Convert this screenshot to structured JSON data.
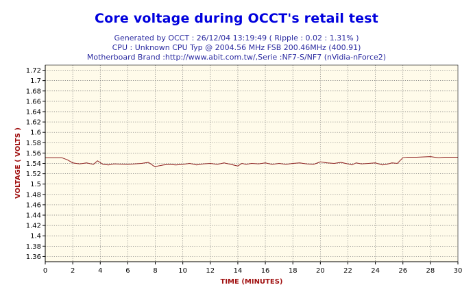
{
  "chart_data": {
    "type": "line",
    "title": "Core voltage during OCCT's retail test",
    "subtitle_lines": [
      "Generated by OCCT : 26/12/04 13:19:49 ( Ripple : 0.02 : 1.31% )",
      "CPU : Unknown CPU Typ @ 2004.56 MHz FSB 200.46MHz (400.91)",
      "Motherboard Brand :http://www.abit.com.tw/,Serie :NF7-S/NF7 (nVidia-nForce2)"
    ],
    "xlabel": "TIME (MINUTES)",
    "ylabel": "VOLTAGE ( VOLTS )",
    "xlim": [
      0,
      30
    ],
    "ylim": [
      1.35,
      1.73
    ],
    "x_ticks": [
      0,
      2,
      4,
      6,
      8,
      10,
      12,
      14,
      16,
      18,
      20,
      22,
      24,
      26,
      28,
      30
    ],
    "y_ticks": [
      "1.36",
      "1.38",
      "1.4",
      "1.42",
      "1.44",
      "1.46",
      "1.48",
      "1.5",
      "1.52",
      "1.54",
      "1.56",
      "1.58",
      "1.6",
      "1.62",
      "1.64",
      "1.66",
      "1.68",
      "1.7",
      "1.72"
    ],
    "grid": true,
    "line_color": "#8b1a1a",
    "background_color": "#fffbea",
    "series": [
      {
        "x": [
          0,
          1.2,
          1.6,
          2.0,
          2.5,
          3,
          3.5,
          3.8,
          4.2,
          4.6,
          5,
          6,
          7,
          7.5,
          8,
          8.2,
          8.6,
          9,
          9.5,
          10,
          10.5,
          11,
          11.5,
          12,
          12.5,
          13,
          13.5,
          14,
          14.3,
          14.6,
          15,
          15.5,
          16,
          16.5,
          17,
          17.5,
          18,
          18.5,
          19,
          19.5,
          20,
          20.5,
          21,
          21.5,
          22,
          22.3,
          22.6,
          23,
          23.5,
          24,
          24.5,
          24.8,
          25.2,
          25.6,
          26,
          26.3,
          26.6,
          27,
          28,
          28.6,
          29,
          30
        ],
        "y": [
          1.551,
          1.551,
          1.547,
          1.541,
          1.539,
          1.541,
          1.538,
          1.545,
          1.538,
          1.537,
          1.539,
          1.538,
          1.54,
          1.542,
          1.533,
          1.535,
          1.537,
          1.538,
          1.537,
          1.538,
          1.54,
          1.537,
          1.539,
          1.54,
          1.538,
          1.541,
          1.538,
          1.535,
          1.54,
          1.538,
          1.54,
          1.539,
          1.541,
          1.538,
          1.54,
          1.538,
          1.54,
          1.541,
          1.539,
          1.538,
          1.543,
          1.541,
          1.54,
          1.542,
          1.539,
          1.537,
          1.541,
          1.539,
          1.54,
          1.541,
          1.537,
          1.538,
          1.541,
          1.54,
          1.551,
          1.552,
          1.552,
          1.552,
          1.553,
          1.551,
          1.552,
          1.552
        ]
      }
    ]
  }
}
